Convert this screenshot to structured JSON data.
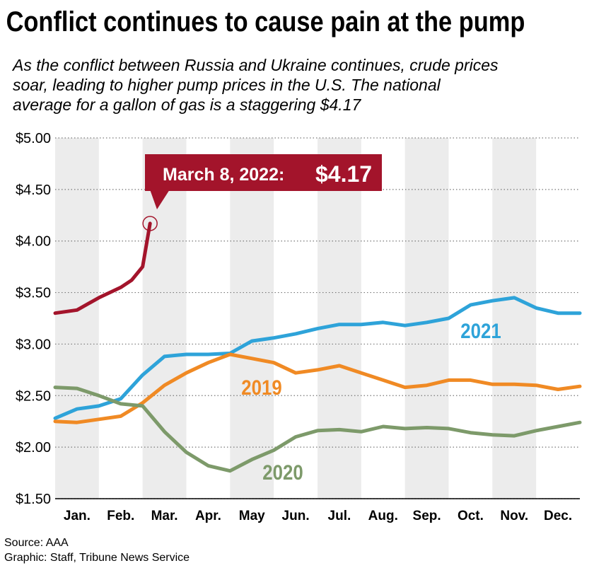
{
  "chart_data": {
    "type": "line",
    "title": "Conflict continues to cause pain at the pump",
    "subtitle": [
      "As the conflict between Russia and Ukraine continues, crude prices",
      "soar, leading to higher pump prices in the U.S. The national",
      "average for a gallon of gas is a staggering $4.17"
    ],
    "categories": [
      "Jan.",
      "Feb.",
      "Mar.",
      "Apr.",
      "May",
      "Jun.",
      "Jul.",
      "Aug.",
      "Sep.",
      "Oct.",
      "Nov.",
      "Dec."
    ],
    "xlim": [
      0,
      12
    ],
    "ylim": [
      1.5,
      5
    ],
    "yticks": [
      {
        "value": 1.5,
        "label": "$1.50"
      },
      {
        "value": 2,
        "label": "$2.00"
      },
      {
        "value": 2.5,
        "label": "$2.50"
      },
      {
        "value": 3,
        "label": "$3.00"
      },
      {
        "value": 3.5,
        "label": "$3.50"
      },
      {
        "value": 4,
        "label": "$4.00"
      },
      {
        "value": 4.5,
        "label": "$4.50"
      },
      {
        "value": 5,
        "label": "$5.00"
      }
    ],
    "grid": true,
    "series": [
      {
        "name": "2021",
        "color": "#2ea3d9",
        "x": [
          0,
          0.5,
          1,
          1.5,
          2,
          2.5,
          3,
          3.5,
          4,
          4.5,
          5,
          5.5,
          6,
          6.5,
          7,
          7.5,
          8,
          8.5,
          9,
          9.5,
          10,
          10.5,
          11,
          11.5,
          12
        ],
        "values": [
          2.28,
          2.37,
          2.4,
          2.47,
          2.7,
          2.88,
          2.9,
          2.9,
          2.91,
          3.03,
          3.06,
          3.1,
          3.15,
          3.19,
          3.19,
          3.21,
          3.18,
          3.21,
          3.25,
          3.38,
          3.42,
          3.45,
          3.35,
          3.3,
          3.3
        ]
      },
      {
        "name": "2019",
        "color": "#f08a24",
        "x": [
          0,
          0.5,
          1,
          1.5,
          2,
          2.5,
          3,
          3.5,
          4,
          4.5,
          5,
          5.5,
          6,
          6.5,
          7,
          7.5,
          8,
          8.5,
          9,
          9.5,
          10,
          10.5,
          11,
          11.5,
          12
        ],
        "values": [
          2.25,
          2.24,
          2.27,
          2.3,
          2.43,
          2.6,
          2.72,
          2.82,
          2.9,
          2.86,
          2.82,
          2.72,
          2.75,
          2.79,
          2.72,
          2.65,
          2.58,
          2.6,
          2.65,
          2.65,
          2.61,
          2.61,
          2.6,
          2.56,
          2.59
        ]
      },
      {
        "name": "2020",
        "color": "#7d9a6a",
        "x": [
          0,
          0.5,
          1,
          1.5,
          2,
          2.5,
          3,
          3.5,
          4,
          4.5,
          5,
          5.5,
          6,
          6.5,
          7,
          7.5,
          8,
          8.5,
          9,
          9.5,
          10,
          10.5,
          11,
          11.5,
          12
        ],
        "values": [
          2.58,
          2.57,
          2.5,
          2.42,
          2.4,
          2.15,
          1.95,
          1.82,
          1.77,
          1.88,
          1.97,
          2.1,
          2.16,
          2.17,
          2.15,
          2.2,
          2.18,
          2.19,
          2.18,
          2.14,
          2.12,
          2.11,
          2.16,
          2.2,
          2.24
        ]
      },
      {
        "color": "#a3142b",
        "x": [
          0,
          0.5,
          1,
          1.5,
          1.75,
          2,
          2.17
        ],
        "values": [
          3.3,
          3.33,
          3.45,
          3.55,
          3.62,
          3.75,
          4.17
        ],
        "value_labels": [
          null,
          null,
          null,
          null,
          null,
          null,
          "$4.17"
        ]
      }
    ],
    "annotation": "March 8, 2022:",
    "source": "Source: AAA",
    "credit": "Graphic: Staff, Tribune News Service"
  }
}
